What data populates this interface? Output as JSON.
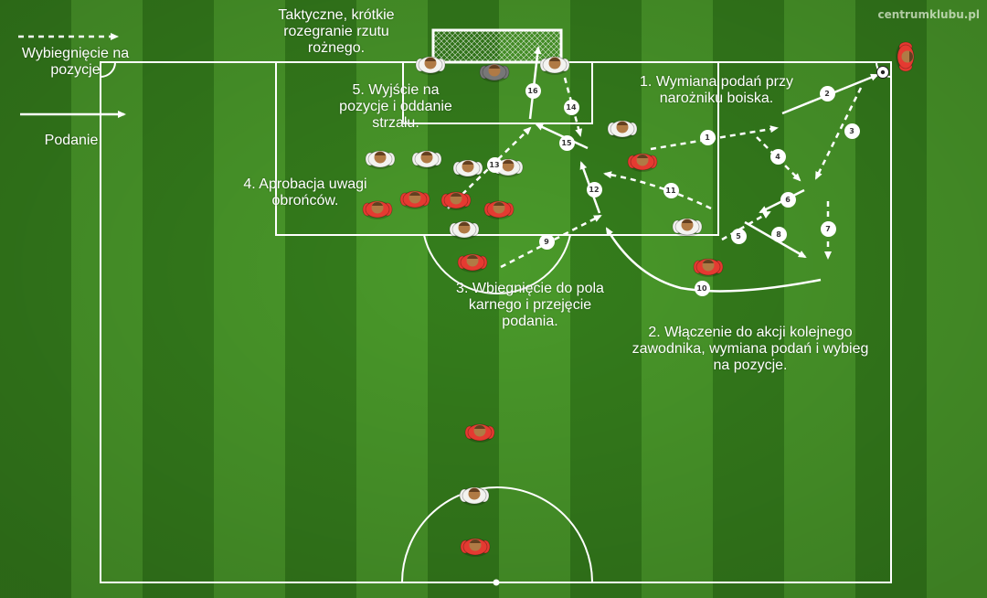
{
  "watermark": "centrumklubu.pl",
  "title": "Taktyczne, krótkie rozegranie rzutu rożnego.",
  "legend": {
    "run_label": "Wybiegnięcie na pozycje",
    "pass_label": "Podanie"
  },
  "steps": {
    "step1": "1. Wymiana podań przy narożniku boiska.",
    "step2": "2. Włączenie do akcji kolejnego zawodnika, wymiana podań i wybieg na pozycje.",
    "step3": "3. Wbiegnięcie do pola karnego i przejęcie podania.",
    "step4": "4. Aprobacja uwagi obrońców.",
    "step5": "5. Wyjście na pozycje i oddanie strzału."
  },
  "move_numbers": [
    "1",
    "2",
    "3",
    "4",
    "5",
    "6",
    "7",
    "8",
    "9",
    "10",
    "11",
    "12",
    "13",
    "14",
    "15",
    "16"
  ],
  "colors": {
    "pitch_dark": "#357e1c",
    "pitch_light": "#4a9a2a",
    "lines": "#ffffff",
    "attacker_shirt": "#e53a31",
    "defender_shirt": "#f3f3f0",
    "goalkeeper_shirt": "#777777",
    "skin": "#b07a45"
  }
}
